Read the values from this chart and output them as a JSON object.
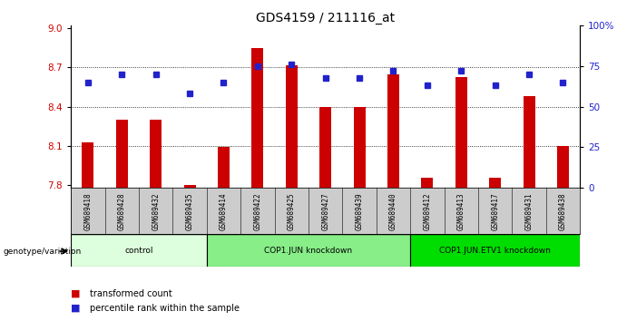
{
  "title": "GDS4159 / 211116_at",
  "samples": [
    "GSM689418",
    "GSM689428",
    "GSM689432",
    "GSM689435",
    "GSM689414",
    "GSM689422",
    "GSM689425",
    "GSM689427",
    "GSM689439",
    "GSM689440",
    "GSM689412",
    "GSM689413",
    "GSM689417",
    "GSM689431",
    "GSM689438"
  ],
  "bar_values": [
    8.13,
    8.3,
    8.3,
    7.8,
    8.09,
    8.85,
    8.72,
    8.4,
    8.4,
    8.65,
    7.86,
    8.63,
    7.86,
    8.48,
    8.1
  ],
  "dot_values": [
    65,
    70,
    70,
    58,
    65,
    75,
    76,
    68,
    68,
    72,
    63,
    72,
    63,
    70,
    65
  ],
  "ylim_left": [
    7.78,
    9.02
  ],
  "ylim_right": [
    0,
    100
  ],
  "yticks_left": [
    7.8,
    8.1,
    8.4,
    8.7,
    9.0
  ],
  "yticks_right": [
    0,
    25,
    50,
    75,
    100
  ],
  "bar_color": "#CC0000",
  "dot_color": "#2222CC",
  "groups": [
    {
      "label": "control",
      "start": 0,
      "end": 3,
      "color": "#ddffdd"
    },
    {
      "label": "COP1.JUN knockdown",
      "start": 4,
      "end": 9,
      "color": "#88ee88"
    },
    {
      "label": "COP1.JUN.ETV1 knockdown",
      "start": 10,
      "end": 14,
      "color": "#00dd00"
    }
  ],
  "legend_bar_label": "transformed count",
  "legend_dot_label": "percentile rank within the sample",
  "xlabel_area": "genotype/variation",
  "title_fontsize": 10
}
